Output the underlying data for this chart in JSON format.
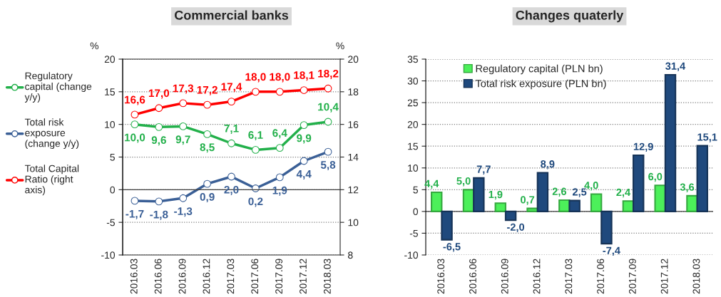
{
  "chart_data": [
    {
      "type": "line",
      "title": "Commercial banks",
      "ylabel": "%",
      "y2label": "%",
      "categories": [
        "2016.03",
        "2016.06",
        "2016.09",
        "2016.12",
        "2017.03",
        "2017.06",
        "2017.09",
        "2017.12",
        "2018.03"
      ],
      "series": [
        {
          "name": "Regulatory\ncapital (change\ny/y)",
          "color": "#22b04a",
          "values": [
            10.0,
            9.6,
            9.7,
            8.5,
            7.1,
            6.1,
            6.4,
            9.9,
            10.4
          ],
          "value_labels": [
            "10,0",
            "9,6",
            "9,7",
            "8,5",
            "7,1",
            "6,1",
            "6,4",
            "9,9",
            "10,4"
          ]
        },
        {
          "name": "Total risk\nexposure\n(change y/y)",
          "color": "#3a5f96",
          "values": [
            -1.7,
            -1.8,
            -1.3,
            0.9,
            2.0,
            0.2,
            1.9,
            4.4,
            5.8
          ],
          "value_labels": [
            "-1,7",
            "-1,8",
            "-1,3",
            "0,9",
            "2,0",
            "0,2",
            "1,9",
            "4,4",
            "5,8"
          ]
        },
        {
          "name": "Total Capital\nRatio (right\naxis)",
          "color": "#ff0000",
          "axis": "y2",
          "values": [
            16.6,
            17.0,
            17.3,
            17.2,
            17.4,
            18.0,
            18.0,
            18.1,
            18.2
          ],
          "value_labels": [
            "16,6",
            "17,0",
            "17,3",
            "17,2",
            "17,4",
            "18,0",
            "18,0",
            "18,1",
            "18,2"
          ]
        }
      ],
      "ylim": [
        -10,
        20
      ],
      "yticks": [
        -10,
        -5,
        0,
        5,
        10,
        15,
        20
      ],
      "y2lim": [
        8,
        20
      ],
      "y2ticks": [
        8,
        10,
        12,
        14,
        16,
        18,
        20
      ],
      "grid": "y",
      "legend": "left",
      "marker": "circle",
      "line_style": "solid"
    },
    {
      "type": "bar",
      "title": "Changes quaterly",
      "categories": [
        "2016.03",
        "2016.06",
        "2016.09",
        "2016.12",
        "2017.03",
        "2017.06",
        "2017.09",
        "2017.12",
        "2018.03"
      ],
      "series": [
        {
          "name": "Regulatory capital (PLN bn)",
          "color": "#4cf05a",
          "values": [
            4.4,
            5.0,
            1.9,
            0.7,
            2.6,
            4.0,
            2.4,
            6.0,
            3.6
          ],
          "value_labels": [
            "4,4",
            "5,0",
            "1,9",
            "0,7",
            "2,6",
            "4,0",
            "2,4",
            "6,0",
            "3,6"
          ]
        },
        {
          "name": "Total risk exposure (PLN bn)",
          "color": "#1f497d",
          "values": [
            -6.5,
            7.7,
            -2.0,
            8.9,
            2.5,
            -7.4,
            12.9,
            31.4,
            15.1
          ],
          "value_labels": [
            "-6,5",
            "7,7",
            "-2,0",
            "8,9",
            "2,5",
            "-7,4",
            "12,9",
            "31,4",
            "15,1"
          ]
        }
      ],
      "ylim": [
        -10,
        35
      ],
      "yticks": [
        -10,
        -5,
        0,
        5,
        10,
        15,
        20,
        25,
        30,
        35
      ],
      "grid": "y",
      "legend": "top left"
    }
  ]
}
